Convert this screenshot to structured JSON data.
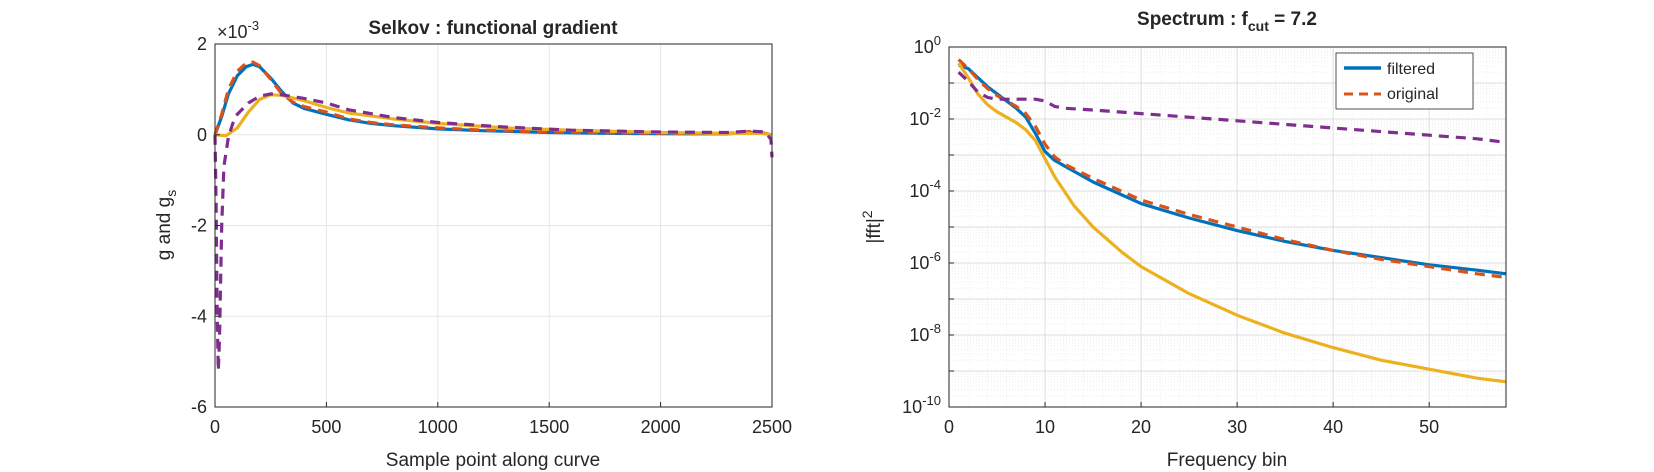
{
  "chart_data": [
    {
      "type": "line",
      "title": "Selkov : functional gradient",
      "xlabel": "Sample point along curve",
      "ylabel_main": "g and g",
      "ylabel_sub": "s",
      "xlim": [
        0,
        2500
      ],
      "ylim": [
        -6,
        2
      ],
      "exponent_prefix": "×10",
      "exponent_value": "-3",
      "grid": true,
      "xticks": [
        0,
        500,
        1000,
        1500,
        2000,
        2500
      ],
      "xtick_labels": [
        "0",
        "500",
        "1000",
        "1500",
        "2000",
        "2500"
      ],
      "yticks": [
        -6,
        -4,
        -2,
        0,
        2
      ],
      "ytick_labels": [
        "-6",
        "-4",
        "-2",
        "0",
        "2"
      ],
      "series": [
        {
          "color": "#0072BD",
          "style": "solid",
          "x": [
            0,
            30,
            60,
            100,
            140,
            170,
            200,
            250,
            300,
            350,
            400,
            500,
            600,
            700,
            800,
            1000,
            1200,
            1500,
            1800,
            2100,
            2300,
            2400,
            2450,
            2500
          ],
          "y": [
            0,
            0.4,
            0.9,
            1.3,
            1.5,
            1.55,
            1.5,
            1.25,
            0.95,
            0.7,
            0.58,
            0.45,
            0.33,
            0.25,
            0.2,
            0.13,
            0.09,
            0.05,
            0.03,
            0.02,
            0.02,
            0.05,
            0.04,
            0.0
          ]
        },
        {
          "color": "#D95319",
          "style": "dashed",
          "x": [
            0,
            30,
            60,
            100,
            140,
            170,
            200,
            250,
            300,
            350,
            400,
            500,
            600,
            700,
            800,
            1000,
            1200,
            1500,
            1800,
            2100,
            2300,
            2400,
            2450,
            2500
          ],
          "y": [
            0,
            0.45,
            1.0,
            1.4,
            1.58,
            1.6,
            1.52,
            1.22,
            0.9,
            0.72,
            0.62,
            0.5,
            0.35,
            0.27,
            0.22,
            0.15,
            0.1,
            0.06,
            0.04,
            0.03,
            0.03,
            0.07,
            0.05,
            0.0
          ]
        },
        {
          "color": "#EDB120",
          "style": "solid",
          "x": [
            0,
            50,
            100,
            150,
            200,
            250,
            300,
            400,
            500,
            600,
            800,
            1000,
            1300,
            1600,
            2000,
            2300,
            2450,
            2500
          ],
          "y": [
            0,
            -0.02,
            0.15,
            0.5,
            0.78,
            0.88,
            0.87,
            0.75,
            0.6,
            0.48,
            0.35,
            0.25,
            0.15,
            0.1,
            0.05,
            0.03,
            0.03,
            0.0
          ]
        },
        {
          "color": "#7E2F8E",
          "style": "dashed",
          "x": [
            0,
            5,
            10,
            15,
            20,
            30,
            40,
            60,
            80,
            100,
            150,
            200,
            250,
            300,
            400,
            500,
            600,
            800,
            1000,
            1300,
            1600,
            2000,
            2300,
            2400,
            2470,
            2495,
            2500
          ],
          "y": [
            0,
            -1.5,
            -4.0,
            -5.2,
            -4.5,
            -2.0,
            -0.7,
            -0.05,
            0.25,
            0.45,
            0.7,
            0.85,
            0.9,
            0.88,
            0.8,
            0.7,
            0.55,
            0.38,
            0.27,
            0.17,
            0.1,
            0.06,
            0.05,
            0.08,
            0.06,
            -0.1,
            -0.5
          ]
        }
      ]
    },
    {
      "type": "line",
      "title_main": "Spectrum : f",
      "title_sub": "cut",
      "title_tail": " = 7.2",
      "xlabel": "Frequency bin",
      "ylabel_main": "|fft|",
      "ylabel_sup": "2",
      "yscale": "log",
      "xlim": [
        0,
        58
      ],
      "ylim_exponents": [
        -10,
        0
      ],
      "grid": true,
      "minor_grid": true,
      "xticks": [
        0,
        10,
        20,
        30,
        40,
        50
      ],
      "xtick_labels": [
        "0",
        "10",
        "20",
        "30",
        "40",
        "50"
      ],
      "yticks": [
        -10,
        -8,
        -6,
        -4,
        -2,
        0
      ],
      "ytick_base": "10",
      "ytick_exponents": [
        "-10",
        "-8",
        "-6",
        "-4",
        "-2",
        "0"
      ],
      "legend_position": "top-right",
      "series": [
        {
          "name": "filtered",
          "color": "#0072BD",
          "style": "solid",
          "x": [
            1,
            2,
            3,
            4,
            5,
            6,
            7,
            8,
            9,
            10,
            11,
            12,
            15,
            20,
            25,
            30,
            35,
            40,
            45,
            50,
            55,
            58
          ],
          "log10y": [
            -0.5,
            -0.6,
            -0.85,
            -1.1,
            -1.3,
            -1.5,
            -1.7,
            -1.95,
            -2.4,
            -2.9,
            -3.15,
            -3.3,
            -3.75,
            -4.35,
            -4.75,
            -5.1,
            -5.4,
            -5.65,
            -5.85,
            -6.05,
            -6.2,
            -6.3
          ]
        },
        {
          "name": "original",
          "color": "#D95319",
          "style": "dashed",
          "x": [
            1,
            2,
            3,
            4,
            5,
            6,
            7,
            8,
            9,
            10,
            11,
            12,
            15,
            20,
            25,
            30,
            35,
            40,
            45,
            50,
            55,
            58
          ],
          "log10y": [
            -0.35,
            -0.6,
            -0.9,
            -1.15,
            -1.35,
            -1.5,
            -1.65,
            -1.85,
            -2.2,
            -2.7,
            -3.05,
            -3.25,
            -3.65,
            -4.25,
            -4.65,
            -5.0,
            -5.35,
            -5.65,
            -5.9,
            -6.1,
            -6.3,
            -6.4
          ]
        },
        {
          "color": "#EDB120",
          "style": "solid",
          "x": [
            1,
            2,
            3,
            4,
            5,
            6,
            7,
            8,
            9,
            10,
            11,
            12,
            13,
            15,
            18,
            20,
            25,
            30,
            35,
            40,
            45,
            50,
            55,
            58
          ],
          "log10y": [
            -0.45,
            -0.85,
            -1.3,
            -1.6,
            -1.8,
            -1.95,
            -2.1,
            -2.3,
            -2.6,
            -3.1,
            -3.6,
            -4.0,
            -4.4,
            -5.0,
            -5.7,
            -6.1,
            -6.85,
            -7.45,
            -7.95,
            -8.35,
            -8.7,
            -8.95,
            -9.2,
            -9.3
          ]
        },
        {
          "color": "#7E2F8E",
          "style": "dashed",
          "x": [
            1,
            2,
            3,
            4,
            5,
            6,
            7,
            8,
            9,
            10,
            11,
            12,
            15,
            20,
            25,
            30,
            35,
            40,
            45,
            50,
            55,
            58
          ],
          "log10y": [
            -0.7,
            -0.95,
            -1.25,
            -1.4,
            -1.45,
            -1.45,
            -1.45,
            -1.45,
            -1.45,
            -1.5,
            -1.65,
            -1.7,
            -1.75,
            -1.85,
            -1.95,
            -2.05,
            -2.15,
            -2.25,
            -2.35,
            -2.45,
            -2.55,
            -2.65
          ]
        }
      ]
    }
  ]
}
